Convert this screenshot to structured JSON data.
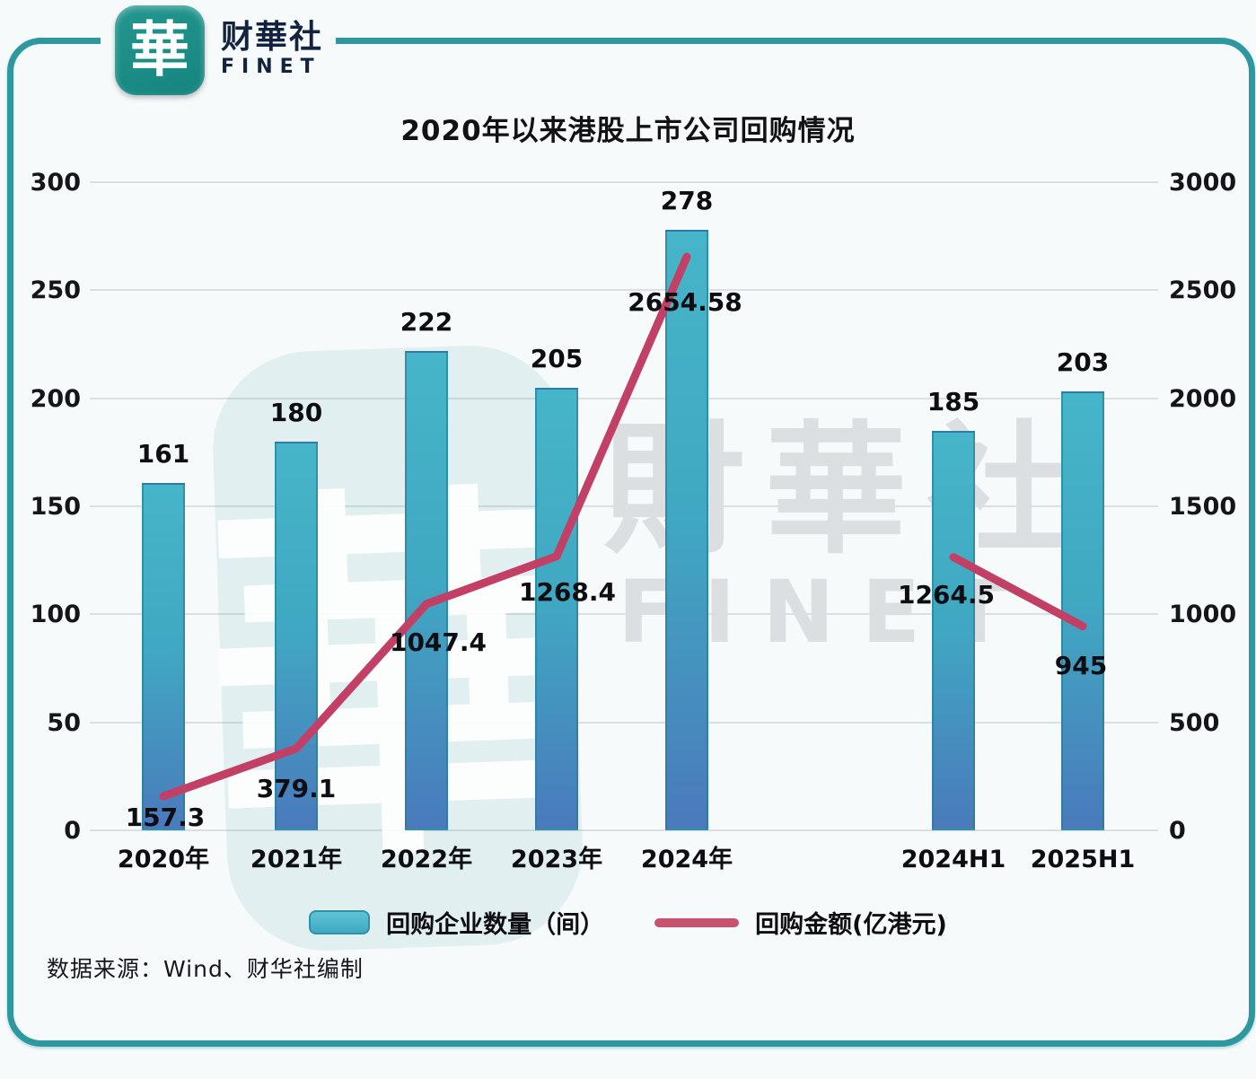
{
  "brand": {
    "logo_glyph": "華",
    "name_cn": "财華社",
    "name_en": "FINET"
  },
  "watermark": {
    "seal_glyph": "華",
    "text_cn": "財華社",
    "text_en": "FINET"
  },
  "source": "数据来源：Wind、财华社编制",
  "chart_data": {
    "type": "combo_bar_line",
    "title": "2020年以来港股上市公司回购情况",
    "categories": [
      "2020年",
      "2021年",
      "2022年",
      "2023年",
      "2024年",
      "2024H1",
      "2025H1"
    ],
    "series": [
      {
        "name": "回购企业数量（间）",
        "type": "bar",
        "axis": "left",
        "values": [
          161,
          180,
          222,
          205,
          278,
          185,
          203
        ],
        "labels": [
          "161",
          "180",
          "222",
          "205",
          "278",
          "185",
          "203"
        ],
        "color": "#41aec4"
      },
      {
        "name": "回购金额(亿港元)",
        "type": "line",
        "axis": "right",
        "values": [
          157.3,
          379.1,
          1047.4,
          1268.4,
          2654.58,
          1264.5,
          945
        ],
        "labels": [
          "157.3",
          "379.1",
          "1047.4",
          "1268.4",
          "2654.58",
          "1264.5",
          "945"
        ],
        "color": "#c23f66",
        "segments": [
          [
            0,
            4
          ],
          [
            5,
            6
          ]
        ]
      }
    ],
    "left_axis": {
      "min": 0,
      "max": 300,
      "ticks": [
        0,
        50,
        100,
        150,
        200,
        250,
        300
      ]
    },
    "right_axis": {
      "min": 0,
      "max": 3000,
      "ticks": [
        0,
        500,
        1000,
        1500,
        2000,
        2500,
        3000
      ]
    },
    "grid": true,
    "legend_position": "bottom"
  }
}
